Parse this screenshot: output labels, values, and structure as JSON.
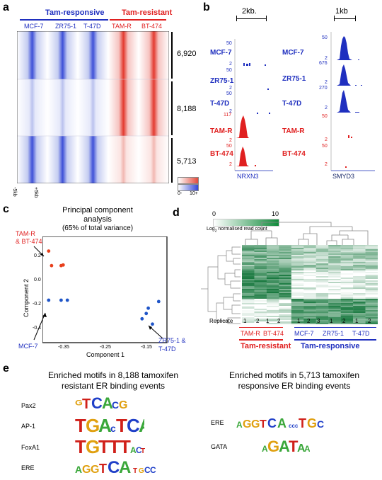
{
  "panels": {
    "a": {
      "label": "a"
    },
    "b": {
      "label": "b"
    },
    "c": {
      "label": "c"
    },
    "d": {
      "label": "d"
    },
    "e": {
      "label": "e"
    }
  },
  "heatmap": {
    "group_responsive": "Tam-responsive",
    "group_resistant": "Tam-resistant",
    "columns": [
      "MCF-7",
      "ZR75-1",
      "T-47D",
      "TAM-R",
      "BT-474"
    ],
    "clusters": [
      "6,920",
      "8,188",
      "5,713"
    ],
    "axis_left": "-5kb",
    "axis_right": "+5kb",
    "scale_min": "0-",
    "scale_max": "10+"
  },
  "tracks": {
    "left_scale": "2kb.",
    "right_scale": "1kb",
    "samples": [
      "MCF-7",
      "ZR75-1",
      "T-47D",
      "TAM-R",
      "BT-474"
    ],
    "left_ranges": [
      "50",
      "2",
      "50",
      "2",
      "50",
      "2",
      "117",
      "2",
      "50",
      "2"
    ],
    "right_ranges": [
      "50",
      "2",
      "676",
      "2",
      "270",
      "2",
      "50",
      "2",
      "50",
      "2"
    ],
    "left_gene": "NRXN3",
    "right_gene": "SMYD3"
  },
  "pca": {
    "title_line1": "Principal component",
    "title_line2": "analysis",
    "title_line3": "(65% of total variance)",
    "xlabel": "Component 1",
    "ylabel": "Component 2",
    "xticks": [
      "-0.35",
      "-0.25",
      "-0.15"
    ],
    "yticks": [
      "0.2",
      "0.0",
      "-0.2",
      "-0.4"
    ],
    "label_tamr_1": "TAM-R",
    "label_tamr_2": "& BT-474",
    "label_mcf7": "MCF-7",
    "label_zr_1": "ZR75-1 &",
    "label_zr_2": "T-47D"
  },
  "chart_data": {
    "type": "scatter",
    "title": "Principal component analysis (65% of total variance)",
    "xlabel": "Component 1",
    "ylabel": "Component 2",
    "xlim": [
      -0.4,
      -0.1
    ],
    "ylim": [
      -0.45,
      0.35
    ],
    "series": [
      {
        "name": "TAM-R & BT-474",
        "color": "#e8401c",
        "points": [
          [
            -0.385,
            0.24
          ],
          [
            -0.378,
            0.13
          ],
          [
            -0.355,
            0.13
          ],
          [
            -0.35,
            0.135
          ]
        ]
      },
      {
        "name": "MCF-7",
        "color": "#1f55c8",
        "points": [
          [
            -0.385,
            -0.13
          ],
          [
            -0.355,
            -0.13
          ],
          [
            -0.34,
            -0.13
          ]
        ]
      },
      {
        "name": "ZR75-1 & T-47D",
        "color": "#1f55c8",
        "points": [
          [
            -0.16,
            -0.27
          ],
          [
            -0.15,
            -0.23
          ],
          [
            -0.145,
            -0.19
          ],
          [
            -0.135,
            -0.31
          ],
          [
            -0.12,
            -0.14
          ]
        ]
      }
    ]
  },
  "clustermap": {
    "scale_min": "0",
    "scale_max": "10",
    "scale_label": "Log",
    "scale_sub": "2",
    "scale_label_rest": " normalised read count",
    "replicate_label": "Replicate",
    "replicates": [
      "1",
      "2",
      "1",
      "2",
      "1",
      "2",
      "3",
      "1",
      "2",
      "1",
      "2"
    ],
    "samples": [
      "TAM-R",
      "BT-474",
      "MCF-7",
      "ZR75-1",
      "T-47D"
    ],
    "group_resistant": "Tam-resistant",
    "group_responsive": "Tam-responsive"
  },
  "motifs": {
    "left_title_1": "Enriched motifs in 8,188 tamoxifen",
    "left_title_2": "resistant ER binding events",
    "right_title_1": "Enriched motifs in 5,713 tamoxifen",
    "right_title_2": "responsive ER binding events",
    "left_names": [
      "Pax2",
      "AP-1",
      "FoxA1",
      "ERE"
    ],
    "right_names": [
      "ERE",
      "GATA"
    ],
    "logos": {
      "pax2": "GTCAcG",
      "ap1": "TGAcTCA",
      "foxa1": "TGTTTAcTTT",
      "ere_left": "AGGTCA...TGcCCT",
      "ere_right": "AGGTCA...TGACCT",
      "gata": "AGATAA"
    }
  }
}
